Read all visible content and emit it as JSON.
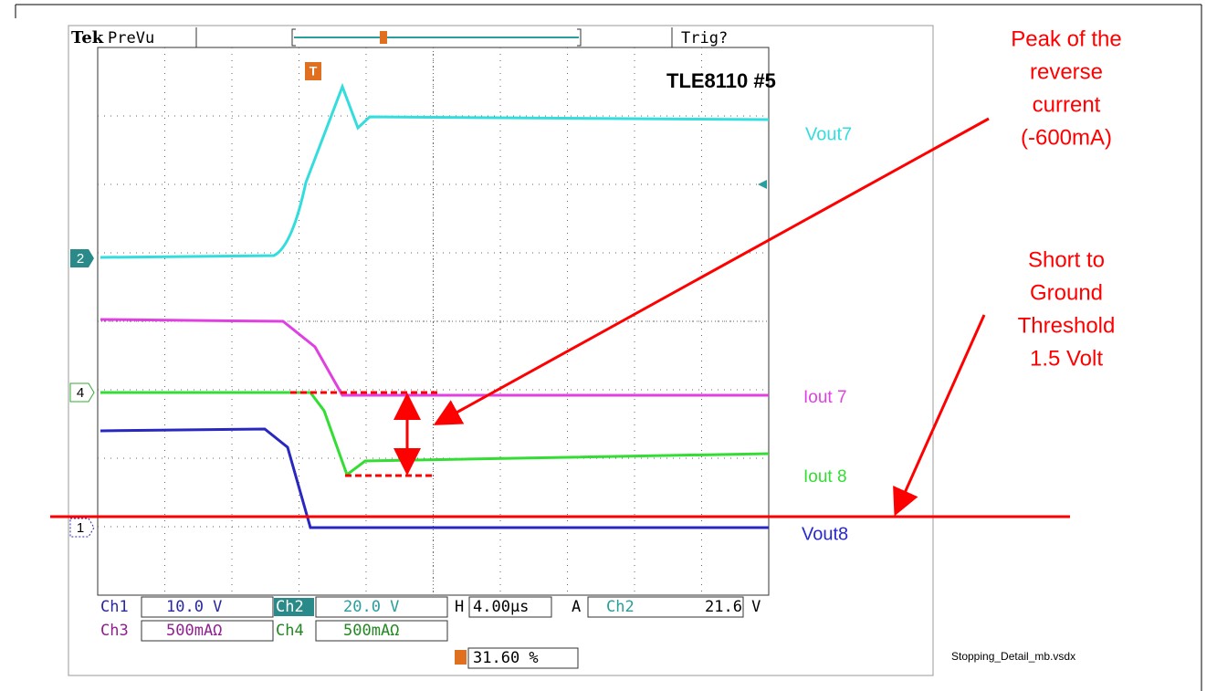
{
  "header": {
    "brand": "Tek",
    "mode": "PreVu",
    "status": "Trig?"
  },
  "title": "TLE8110   #5",
  "trace_labels": [
    "Vout7",
    "Iout 7",
    "Iout 8",
    "Vout8"
  ],
  "channel_markers": [
    "2",
    "4",
    "1"
  ],
  "trigger_marker": "T",
  "settings": {
    "row1": [
      "Ch1",
      "10.0 V",
      "Ch2",
      "20.0 V",
      "H",
      "4.00µs",
      "A",
      "Ch2",
      "21.6 V"
    ],
    "row2": [
      "Ch3",
      "500mAΩ",
      "Ch4",
      "500mAΩ"
    ],
    "trigger_position": "31.60 %"
  },
  "annotations": {
    "peak": [
      "Peak of the",
      "reverse",
      "current",
      "(-600mA)"
    ],
    "threshold": [
      "Short to",
      "Ground",
      "Threshold",
      "1.5 Volt"
    ]
  },
  "file_name": "Stopping_Detail_mb.vsdx"
}
